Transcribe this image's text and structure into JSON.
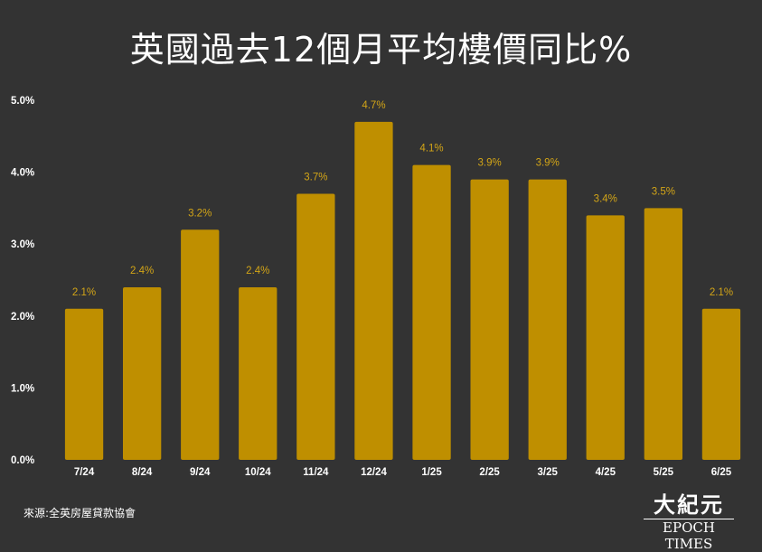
{
  "chart_data": {
    "type": "bar",
    "title": "英國過去12個月平均樓價同比%",
    "categories": [
      "7/24",
      "8/24",
      "9/24",
      "10/24",
      "11/24",
      "12/24",
      "1/25",
      "2/25",
      "3/25",
      "4/25",
      "5/25",
      "6/25"
    ],
    "values": [
      2.1,
      2.4,
      3.2,
      2.4,
      3.7,
      4.7,
      4.1,
      3.9,
      3.9,
      3.4,
      3.5,
      2.1
    ],
    "data_labels": [
      "2.1%",
      "2.4%",
      "3.2%",
      "2.4%",
      "3.7%",
      "4.7%",
      "4.1%",
      "3.9%",
      "3.9%",
      "3.4%",
      "3.5%",
      "2.1%"
    ],
    "yticks": [
      0,
      1,
      2,
      3,
      4,
      5
    ],
    "ytick_labels": [
      "0.0%",
      "1.0%",
      "2.0%",
      "3.0%",
      "4.0%",
      "5.0%"
    ],
    "ylim": [
      0,
      5
    ],
    "xlabel": "",
    "ylabel": "",
    "grid": false,
    "colors": {
      "bar": "#bf8f00",
      "label": "#d3a517",
      "background": "#333333",
      "text": "#ffffff"
    }
  },
  "footer": {
    "source": "來源:全英房屋貸款協會",
    "logo_cn": "大紀元",
    "logo_en": "EPOCH TIMES"
  }
}
